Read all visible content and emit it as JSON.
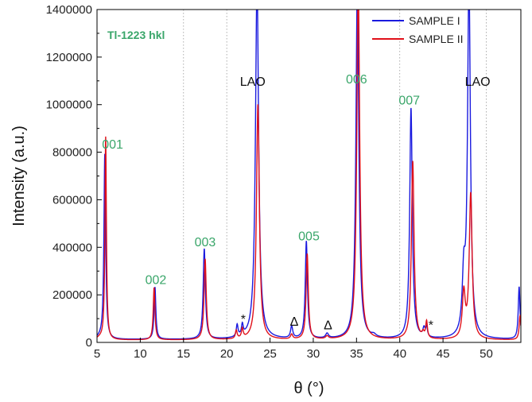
{
  "chart_data": {
    "type": "line",
    "title": "",
    "inset_title": "Tl-1223 hkl",
    "xlabel": "θ (°)",
    "ylabel": "Intensity (a.u.)",
    "xlim": [
      5,
      54
    ],
    "ylim": [
      0,
      1400000
    ],
    "x_ticks": [
      5,
      10,
      15,
      20,
      25,
      30,
      35,
      40,
      45,
      50
    ],
    "y_ticks": [
      0,
      200000,
      400000,
      600000,
      800000,
      1000000,
      1200000,
      1400000
    ],
    "grid": "vertical dotted",
    "legend_position": "top-right",
    "series": [
      {
        "name": "SAMPLE I",
        "color": "#1a1adf",
        "baseline": 12000,
        "peaks": [
          [
            5.9,
            780000,
            0.12
          ],
          [
            11.7,
            220000,
            0.12
          ],
          [
            17.4,
            380000,
            0.15
          ],
          [
            21.2,
            50000,
            0.12
          ],
          [
            21.8,
            45000,
            0.12
          ],
          [
            23.5,
            1500000,
            0.22
          ],
          [
            27.5,
            50000,
            0.15
          ],
          [
            29.2,
            410000,
            0.15
          ],
          [
            31.6,
            20000,
            0.2
          ],
          [
            35.1,
            1500000,
            0.2
          ],
          [
            37.0,
            10000,
            0.3
          ],
          [
            41.3,
            970000,
            0.18
          ],
          [
            42.8,
            35000,
            0.15
          ],
          [
            43.1,
            40000,
            0.12
          ],
          [
            47.4,
            230000,
            0.2
          ],
          [
            48.0,
            1500000,
            0.2
          ],
          [
            53.8,
            220000,
            0.12
          ]
        ]
      },
      {
        "name": "SAMPLE II",
        "color": "#e0101a",
        "baseline": 10000,
        "peaks": [
          [
            6.0,
            855000,
            0.1
          ],
          [
            11.6,
            220000,
            0.12
          ],
          [
            17.5,
            340000,
            0.15
          ],
          [
            21.1,
            35000,
            0.12
          ],
          [
            21.8,
            40000,
            0.12
          ],
          [
            23.6,
            990000,
            0.2
          ],
          [
            27.5,
            20000,
            0.15
          ],
          [
            29.3,
            360000,
            0.15
          ],
          [
            31.6,
            12000,
            0.2
          ],
          [
            35.2,
            1500000,
            0.2
          ],
          [
            41.5,
            750000,
            0.18
          ],
          [
            42.7,
            20000,
            0.15
          ],
          [
            43.1,
            70000,
            0.12
          ],
          [
            47.4,
            190000,
            0.2
          ],
          [
            48.2,
            610000,
            0.2
          ],
          [
            53.9,
            100000,
            0.12
          ]
        ]
      }
    ],
    "annotations": [
      {
        "text": "001",
        "x": 6.8,
        "y": 815000,
        "color": "#3aa66a"
      },
      {
        "text": "002",
        "x": 11.8,
        "y": 245000,
        "color": "#3aa66a"
      },
      {
        "text": "003",
        "x": 17.5,
        "y": 405000,
        "color": "#3aa66a"
      },
      {
        "text": "LAO",
        "x": 23.0,
        "y": 1080000,
        "color": "#111111"
      },
      {
        "text": "005",
        "x": 29.5,
        "y": 430000,
        "color": "#3aa66a"
      },
      {
        "text": "006",
        "x": 35.0,
        "y": 1090000,
        "color": "#3aa66a"
      },
      {
        "text": "007",
        "x": 41.1,
        "y": 1000000,
        "color": "#3aa66a"
      },
      {
        "text": "LAO",
        "x": 49.0,
        "y": 1080000,
        "color": "#111111"
      },
      {
        "text": "*",
        "x": 21.9,
        "y": 80000,
        "color": "#111111"
      },
      {
        "text": "*",
        "x": 43.6,
        "y": 55000,
        "color": "#111111"
      },
      {
        "text": "Δ",
        "x": 27.8,
        "y": 70000,
        "color": "#111111"
      },
      {
        "text": "Δ",
        "x": 31.7,
        "y": 55000,
        "color": "#111111"
      }
    ]
  }
}
